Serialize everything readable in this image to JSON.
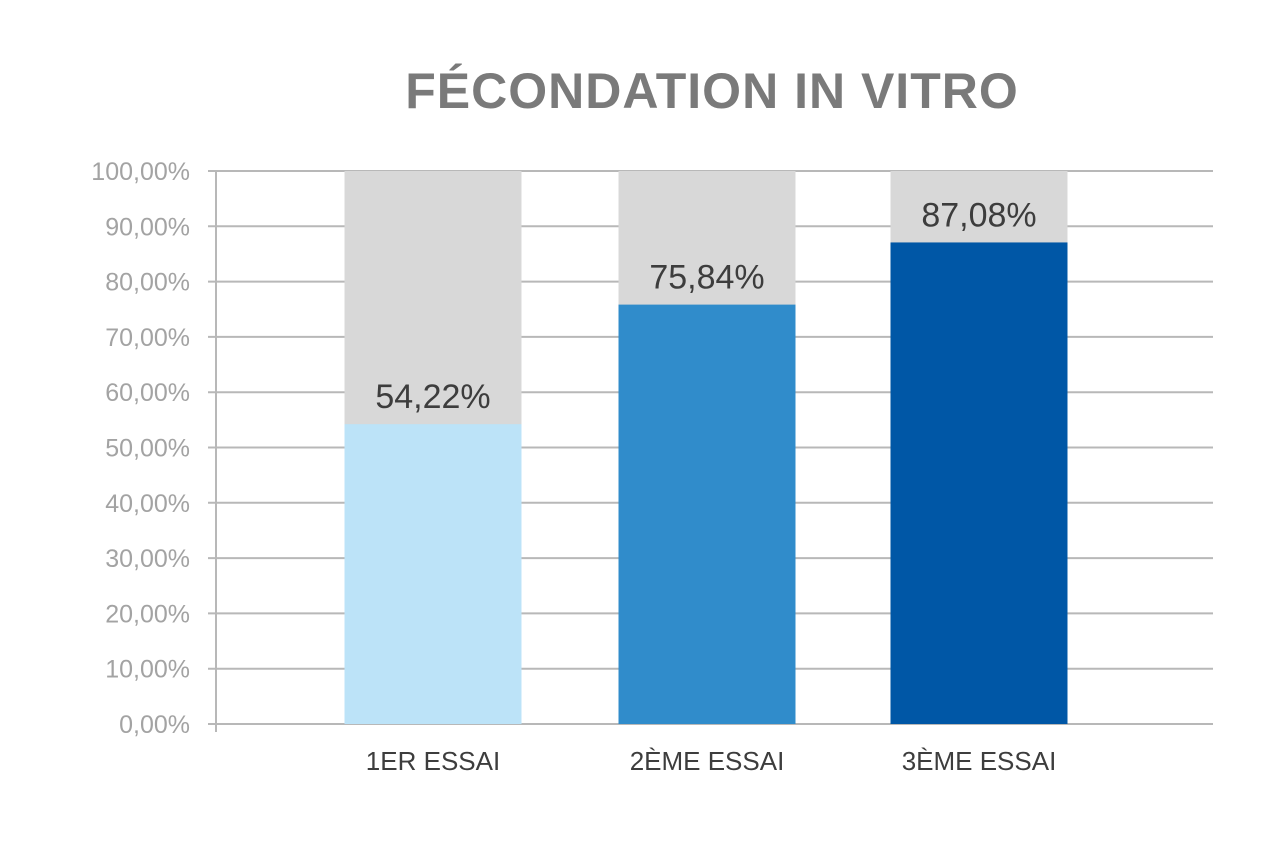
{
  "chart_data": {
    "type": "bar",
    "title": "FÉCONDATION IN VITRO",
    "categories": [
      "1ER ESSAI",
      "2ÈME ESSAI",
      "3ÈME ESSAI"
    ],
    "values": [
      54.22,
      75.84,
      87.08
    ],
    "data_labels": [
      "54,22%",
      "75,84%",
      "87,08%"
    ],
    "ylim": [
      0,
      100
    ],
    "y_ticks": [
      0,
      10,
      20,
      30,
      40,
      50,
      60,
      70,
      80,
      90,
      100
    ],
    "y_tick_labels": [
      "0,00%",
      "10,00%",
      "20,00%",
      "30,00%",
      "40,00%",
      "50,00%",
      "60,00%",
      "70,00%",
      "80,00%",
      "90,00%",
      "100,00%"
    ],
    "background_bar_value": 100,
    "grid": true,
    "colors": {
      "bars": [
        "#bce3f8",
        "#308ccb",
        "#0057a6"
      ],
      "background_bar": "#d8d8d8",
      "grid": "#b8b8b8",
      "title": "#7a7a7a",
      "tick_labels": "#a3a3a3",
      "labels": "#3d3d3d"
    }
  }
}
